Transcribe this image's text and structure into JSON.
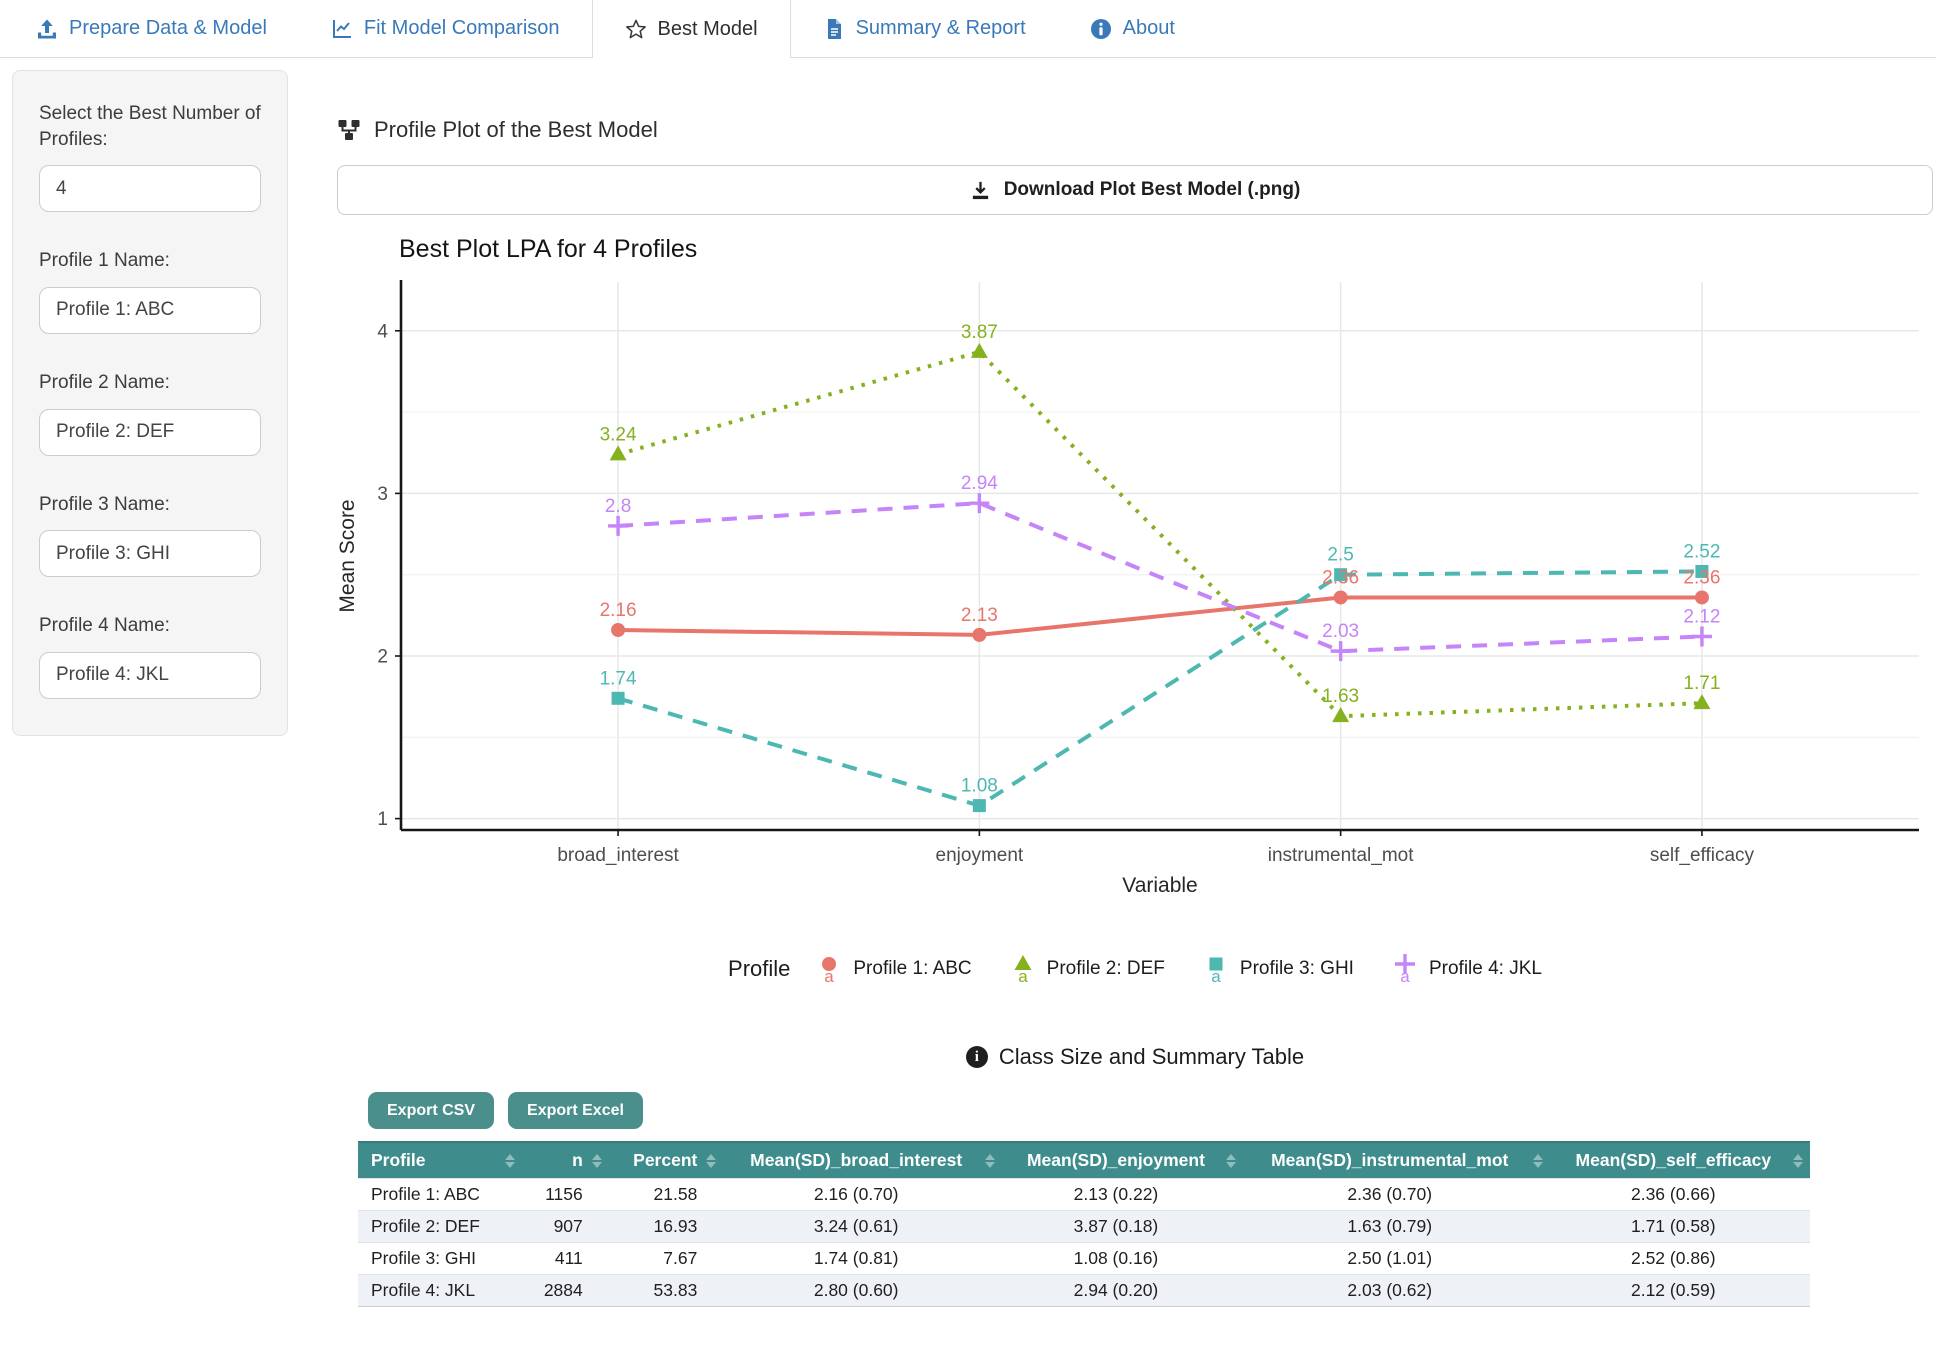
{
  "tabs": [
    {
      "label": "Prepare Data & Model",
      "icon": "upload-icon",
      "active": false
    },
    {
      "label": "Fit Model Comparison",
      "icon": "chart-line-icon",
      "active": false
    },
    {
      "label": "Best Model",
      "icon": "star-icon",
      "active": true
    },
    {
      "label": "Summary & Report",
      "icon": "file-icon",
      "active": false
    },
    {
      "label": "About",
      "icon": "info-circle-icon",
      "active": false
    }
  ],
  "sidebar": {
    "profiles_label": "Select the Best Number of Profiles:",
    "profiles_value": "4",
    "fields": [
      {
        "label": "Profile 1 Name:",
        "value": "Profile 1: ABC"
      },
      {
        "label": "Profile 2 Name:",
        "value": "Profile 2: DEF"
      },
      {
        "label": "Profile 3 Name:",
        "value": "Profile 3: GHI"
      },
      {
        "label": "Profile 4 Name:",
        "value": "Profile 4: JKL"
      }
    ]
  },
  "main": {
    "plot_heading": "Profile Plot of the Best Model",
    "download_button": "Download Plot Best Model (.png)",
    "table_heading": "Class Size and Summary Table",
    "export_csv": "Export CSV",
    "export_excel": "Export Excel"
  },
  "chart_data": {
    "type": "line",
    "title": "Best Plot LPA for 4 Profiles",
    "xlabel": "Variable",
    "ylabel": "Mean Score",
    "ylim": [
      1,
      4
    ],
    "yticks": [
      1,
      2,
      3,
      4
    ],
    "grid": "on",
    "legend_position": "bottom",
    "legend_title": "Profile",
    "categories": [
      "broad_interest",
      "enjoyment",
      "instrumental_mot",
      "self_efficacy"
    ],
    "series": [
      {
        "name": "Profile 1: ABC",
        "color": "#E8756B",
        "marker": "circle",
        "dash": "solid",
        "values": [
          2.16,
          2.13,
          2.36,
          2.36
        ]
      },
      {
        "name": "Profile 2: DEF",
        "color": "#84B21E",
        "marker": "triangle",
        "dash": "dotted",
        "values": [
          3.24,
          3.87,
          1.63,
          1.71
        ]
      },
      {
        "name": "Profile 3: GHI",
        "color": "#4DB8B2",
        "marker": "square",
        "dash": "dashed",
        "values": [
          1.74,
          1.08,
          2.5,
          2.52
        ]
      },
      {
        "name": "Profile 4: JKL",
        "color": "#C584F7",
        "marker": "plus",
        "dash": "dashed",
        "values": [
          2.8,
          2.94,
          2.03,
          2.12
        ]
      }
    ],
    "point_labels": [
      [
        "2.16",
        "2.13",
        "2.36",
        "2.36"
      ],
      [
        "3.24",
        "3.87",
        "1.63",
        "1.71"
      ],
      [
        "1.74",
        "1.08",
        "2.5",
        "2.52"
      ],
      [
        "2.8",
        "2.94",
        "2.03",
        "2.12"
      ]
    ]
  },
  "table": {
    "columns": [
      "Profile",
      "n",
      "Percent",
      "Mean(SD)_broad_interest",
      "Mean(SD)_enjoyment",
      "Mean(SD)_instrumental_mot",
      "Mean(SD)_self_efficacy"
    ],
    "rows": [
      [
        "Profile 1: ABC",
        "1156",
        "21.58",
        "2.16 (0.70)",
        "2.13 (0.22)",
        "2.36 (0.70)",
        "2.36 (0.66)"
      ],
      [
        "Profile 2: DEF",
        "907",
        "16.93",
        "3.24 (0.61)",
        "3.87 (0.18)",
        "1.63 (0.79)",
        "1.71 (0.58)"
      ],
      [
        "Profile 3: GHI",
        "411",
        "7.67",
        "1.74 (0.81)",
        "1.08 (0.16)",
        "2.50 (1.01)",
        "2.52 (0.86)"
      ],
      [
        "Profile 4: JKL",
        "2884",
        "53.83",
        "2.80 (0.60)",
        "2.94 (0.20)",
        "2.03 (0.62)",
        "2.12 (0.59)"
      ]
    ]
  }
}
